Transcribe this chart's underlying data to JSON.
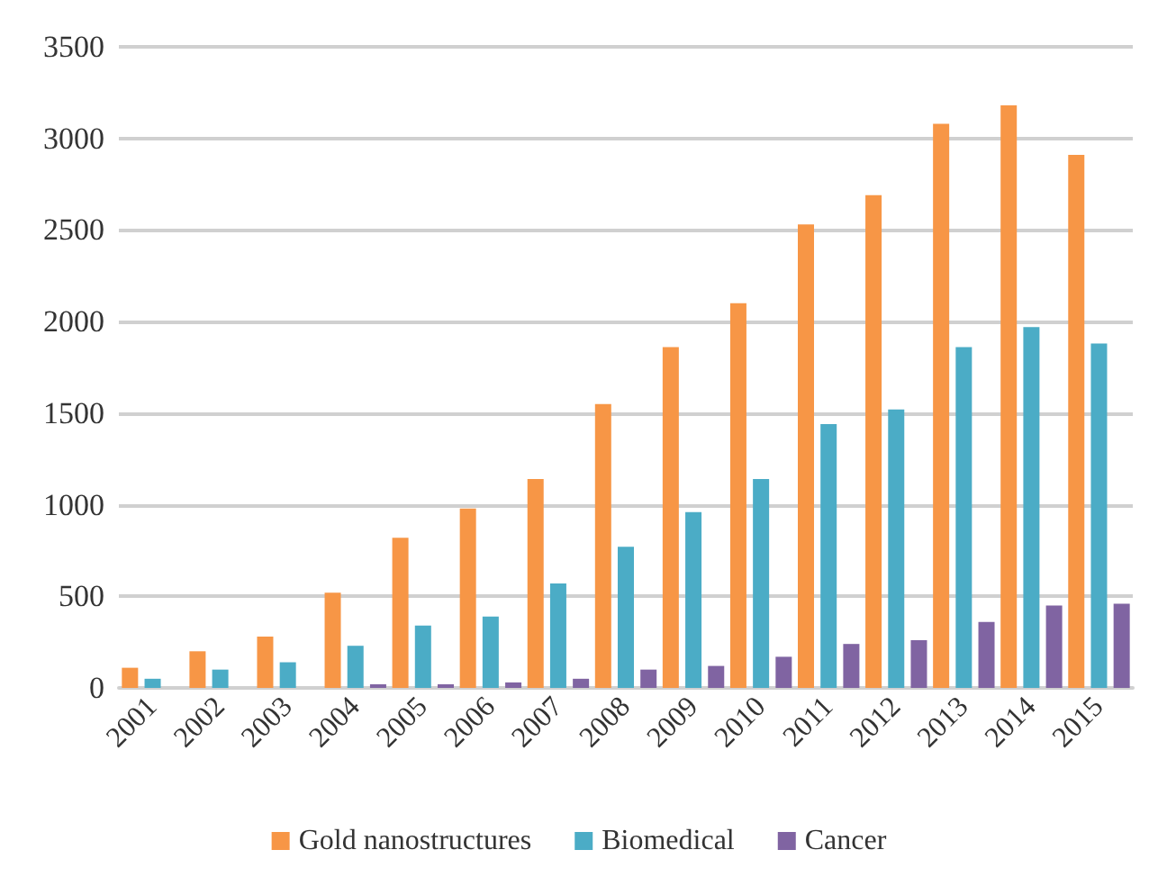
{
  "chart_data": {
    "type": "bar",
    "categories": [
      "2001",
      "2002",
      "2003",
      "2004",
      "2005",
      "2006",
      "2007",
      "2008",
      "2009",
      "2010",
      "2011",
      "2012",
      "2013",
      "2014",
      "2015"
    ],
    "series": [
      {
        "name": "Gold nanostructures",
        "color": "#f79646",
        "values": [
          110,
          200,
          280,
          520,
          820,
          980,
          1140,
          1550,
          1860,
          2100,
          2530,
          2690,
          3080,
          3180,
          2910
        ]
      },
      {
        "name": "Biomedical",
        "color": "#4bacc6",
        "values": [
          50,
          100,
          140,
          230,
          340,
          390,
          570,
          770,
          960,
          1140,
          1440,
          1520,
          1860,
          1970,
          1880
        ]
      },
      {
        "name": "Cancer",
        "color": "#8064a2",
        "values": [
          0,
          0,
          0,
          20,
          20,
          30,
          50,
          100,
          120,
          170,
          240,
          260,
          360,
          450,
          460
        ]
      }
    ],
    "ylim": [
      0,
      3500
    ],
    "yticks": [
      0,
      500,
      1000,
      1500,
      2000,
      2500,
      3000,
      3500
    ],
    "grid": "y",
    "legend": "bottom"
  }
}
